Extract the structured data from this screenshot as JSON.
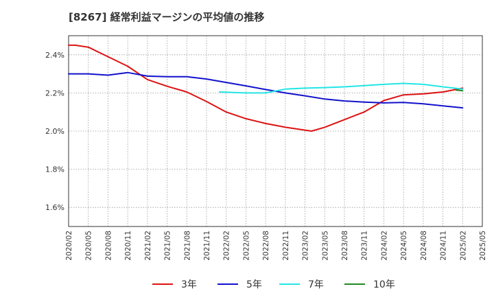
{
  "chart_data": {
    "type": "line",
    "title": "[8267]  経常利益マージンの平均値の推移",
    "y_unit": "%",
    "ylim": [
      1.5,
      2.5
    ],
    "yticks": [
      1.6,
      1.8,
      2.0,
      2.2,
      2.4
    ],
    "ytick_labels": [
      "1.6%",
      "1.8%",
      "2.0%",
      "2.2%",
      "2.4%"
    ],
    "xlim": [
      "2020/02",
      "2025/05"
    ],
    "xtick_labels": [
      "2020/02",
      "2020/05",
      "2020/08",
      "2020/11",
      "2021/02",
      "2021/05",
      "2021/08",
      "2021/11",
      "2022/02",
      "2022/05",
      "2022/08",
      "2022/11",
      "2023/02",
      "2023/05",
      "2023/08",
      "2023/11",
      "2024/02",
      "2024/05",
      "2024/08",
      "2024/11",
      "2025/02",
      "2025/05"
    ],
    "grid": true,
    "legend_position": "bottom",
    "series": [
      {
        "name": "3年",
        "color": "#dd1111",
        "x": [
          "2020/02",
          "2020/03",
          "2020/05",
          "2020/08",
          "2020/11",
          "2021/02",
          "2021/05",
          "2021/08",
          "2021/11",
          "2022/02",
          "2022/05",
          "2022/08",
          "2022/11",
          "2023/02",
          "2023/03",
          "2023/05",
          "2023/08",
          "2023/11",
          "2024/02",
          "2024/05",
          "2024/08",
          "2024/11",
          "2025/02"
        ],
        "y": [
          2.45,
          2.45,
          2.44,
          2.39,
          2.34,
          2.27,
          2.235,
          2.205,
          2.155,
          2.1,
          2.065,
          2.04,
          2.02,
          2.005,
          2.0,
          2.02,
          2.06,
          2.1,
          2.16,
          2.19,
          2.195,
          2.205,
          2.225
        ]
      },
      {
        "name": "5年",
        "color": "#1111cc",
        "x": [
          "2020/02",
          "2020/05",
          "2020/08",
          "2020/11",
          "2021/02",
          "2021/05",
          "2021/08",
          "2021/11",
          "2022/02",
          "2022/05",
          "2022/08",
          "2022/11",
          "2023/02",
          "2023/05",
          "2023/08",
          "2023/11",
          "2024/02",
          "2024/05",
          "2024/08",
          "2024/11",
          "2025/02"
        ],
        "y": [
          2.3,
          2.3,
          2.293,
          2.307,
          2.288,
          2.285,
          2.285,
          2.273,
          2.255,
          2.237,
          2.218,
          2.2,
          2.185,
          2.168,
          2.158,
          2.152,
          2.148,
          2.15,
          2.143,
          2.132,
          2.122
        ]
      },
      {
        "name": "7年",
        "color": "#22e5e5",
        "x": [
          "2022/01",
          "2022/05",
          "2022/08",
          "2022/11",
          "2023/02",
          "2023/05",
          "2023/08",
          "2023/11",
          "2024/02",
          "2024/05",
          "2024/08",
          "2024/11",
          "2025/02"
        ],
        "y": [
          2.205,
          2.2,
          2.2,
          2.22,
          2.225,
          2.228,
          2.232,
          2.238,
          2.245,
          2.25,
          2.245,
          2.232,
          2.22
        ]
      },
      {
        "name": "10年",
        "color": "#228822",
        "x": [
          "2025/01",
          "2025/02"
        ],
        "y": [
          2.215,
          2.212
        ]
      }
    ]
  }
}
